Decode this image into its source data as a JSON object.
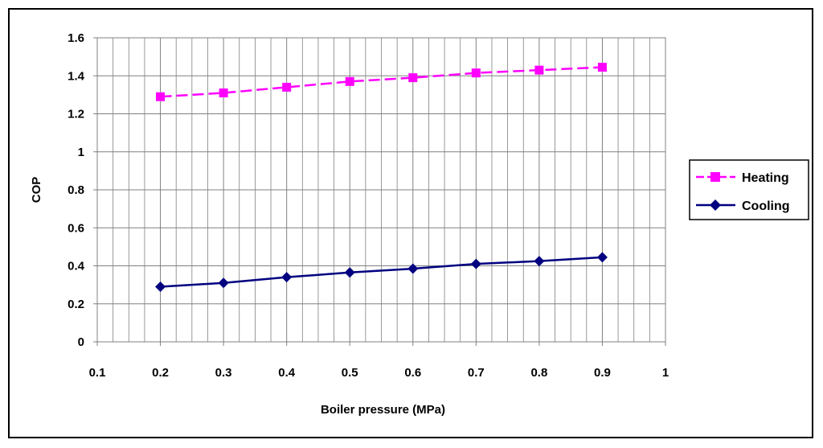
{
  "chart_data": {
    "type": "line",
    "title": "",
    "xlabel": "Boiler pressure (MPa)",
    "ylabel": "COP",
    "xlim": [
      0.1,
      1.0
    ],
    "ylim": [
      0,
      1.6
    ],
    "x_ticks": [
      "0.1",
      "0.2",
      "0.3",
      "0.4",
      "0.5",
      "0.6",
      "0.7",
      "0.8",
      "0.9",
      "1"
    ],
    "y_ticks": [
      "0",
      "0.2",
      "0.4",
      "0.6",
      "0.8",
      "1",
      "1.2",
      "1.4",
      "1.6"
    ],
    "x": [
      0.2,
      0.3,
      0.4,
      0.5,
      0.6,
      0.7,
      0.8,
      0.9
    ],
    "series": [
      {
        "name": "Heating",
        "color": "#ff00ff",
        "marker": "square",
        "dash": true,
        "values": [
          1.29,
          1.31,
          1.34,
          1.37,
          1.39,
          1.415,
          1.43,
          1.445
        ]
      },
      {
        "name": "Cooling",
        "color": "#000080",
        "marker": "diamond",
        "dash": false,
        "values": [
          0.29,
          0.31,
          0.34,
          0.365,
          0.385,
          0.41,
          0.425,
          0.445
        ]
      }
    ],
    "grid": true,
    "legend_position": "right"
  }
}
